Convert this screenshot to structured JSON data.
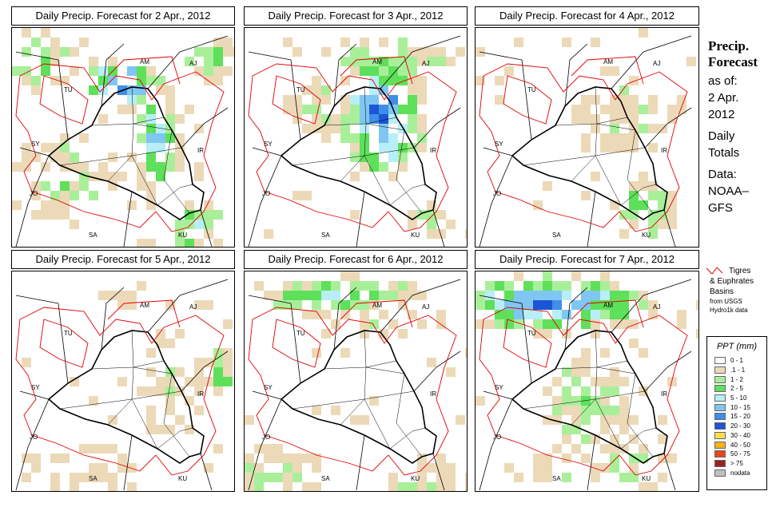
{
  "panels": [
    {
      "title": "Daily Precip. Forecast for  2 Apr., 2012"
    },
    {
      "title": "Daily Precip. Forecast for  3 Apr., 2012"
    },
    {
      "title": "Daily Precip. Forecast for  4 Apr., 2012"
    },
    {
      "title": "Daily Precip. Forecast for  5 Apr., 2012"
    },
    {
      "title": "Daily Precip. Forecast for  6 Apr., 2012"
    },
    {
      "title": "Daily Precip. Forecast for  7 Apr., 2012"
    }
  ],
  "map_labels": {
    "am": "AM",
    "aj": "AJ",
    "tu": "TU",
    "sy": "SY",
    "ir": "IR",
    "jo": "JO",
    "sa": "SA",
    "ku": "KU"
  },
  "side": {
    "heading1": "Precip.",
    "heading2": "Forecast",
    "asof": "as of:",
    "date1": "2 Apr.",
    "date2": "2012",
    "daily": "Daily",
    "totals": "Totals",
    "data": "Data:",
    "src1": "NOAA–",
    "src2": "GFS"
  },
  "basin": {
    "line1": "Tigres",
    "line2": "& Euphrates",
    "line3": "Basins",
    "line4": "from USGS",
    "line5": "Hydro1k data"
  },
  "legend": {
    "title": "PPT (mm)",
    "items": [
      {
        "label": "0 - 1",
        "color": "#ffffff"
      },
      {
        "label": ".1 - 1",
        "color": "#ecd9b8"
      },
      {
        "label": "1 - 2",
        "color": "#a9ef9a"
      },
      {
        "label": "2 - 5",
        "color": "#5ee05a"
      },
      {
        "label": "5 - 10",
        "color": "#b8eef7"
      },
      {
        "label": "10 - 15",
        "color": "#7fc6f2"
      },
      {
        "label": "15 - 20",
        "color": "#3f8ee8"
      },
      {
        "label": "20 - 30",
        "color": "#1a56d6"
      },
      {
        "label": "30 - 40",
        "color": "#f7e04a"
      },
      {
        "label": "40 - 50",
        "color": "#f7b21b"
      },
      {
        "label": "50 - 75",
        "color": "#e8451a"
      },
      {
        "label": "> 75",
        "color": "#a02020"
      },
      {
        "label": "nodata",
        "color": "#c0c0c0"
      }
    ]
  }
}
